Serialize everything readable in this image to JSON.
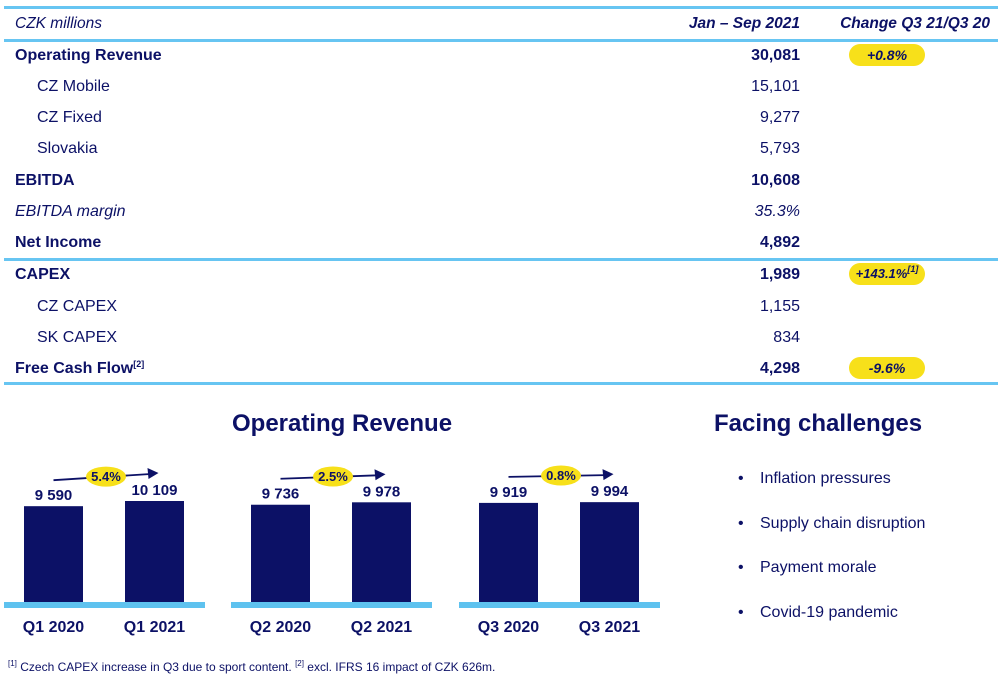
{
  "table": {
    "header": {
      "unit": "CZK millions",
      "period": "Jan – Sep 2021",
      "change": "Change Q3 21/Q3 20"
    },
    "rows": [
      {
        "label": "Operating Revenue",
        "value": "30,081",
        "change": "+0.8%",
        "style": "bold"
      },
      {
        "label": "CZ Mobile",
        "value": "15,101",
        "style": "sub"
      },
      {
        "label": "CZ Fixed",
        "value": "9,277",
        "style": "sub"
      },
      {
        "label": "Slovakia",
        "value": "5,793",
        "style": "sub"
      },
      {
        "label": "EBITDA",
        "value": "10,608",
        "style": "bold"
      },
      {
        "label": "EBITDA margin",
        "value": "35.3%",
        "style": "italic"
      },
      {
        "label": "Net Income",
        "value": "4,892",
        "style": "bold"
      },
      {
        "label": "CAPEX",
        "value": "1,989",
        "change": "+143.1%",
        "change_sup": "[1]",
        "style": "bold"
      },
      {
        "label": "CZ CAPEX",
        "value": "1,155",
        "style": "sub"
      },
      {
        "label": "SK CAPEX",
        "value": "834",
        "style": "sub"
      },
      {
        "label": "Free Cash Flow",
        "label_sup": "[2]",
        "value": "4,298",
        "change": "-9.6%",
        "style": "bold"
      }
    ]
  },
  "revenue_section": {
    "title": "Operating Revenue"
  },
  "challenges": {
    "title": "Facing challenges",
    "bullet_symbol": "•",
    "items": [
      "Inflation pressures",
      "Supply chain disruption",
      "Payment morale",
      "Covid-19 pandemic"
    ]
  },
  "footnote": {
    "ref1": "[1]",
    "text1": " Czech CAPEX increase in Q3 due to sport content. ",
    "ref2": "[2]",
    "text2": " excl. IFRS 16 impact of CZK 626m."
  },
  "chart_data": {
    "type": "bar",
    "title": "Operating Revenue",
    "groups": [
      {
        "categories": [
          "Q1 2020",
          "Q1 2021"
        ],
        "values": [
          9590,
          10109
        ],
        "value_labels": [
          "9 590",
          "10 109"
        ],
        "change": "5.4%"
      },
      {
        "categories": [
          "Q2 2020",
          "Q2 2021"
        ],
        "values": [
          9736,
          9978
        ],
        "value_labels": [
          "9 736",
          "9 978"
        ],
        "change": "2.5%"
      },
      {
        "categories": [
          "Q3 2020",
          "Q3 2021"
        ],
        "values": [
          9919,
          9994
        ],
        "value_labels": [
          "9 919",
          "9 994"
        ],
        "change": "0.8%"
      }
    ],
    "colors": {
      "bar": "#0c1166",
      "baseline": "#5ec2ef",
      "badge": "#f7e01a",
      "text": "#0c1166"
    }
  }
}
